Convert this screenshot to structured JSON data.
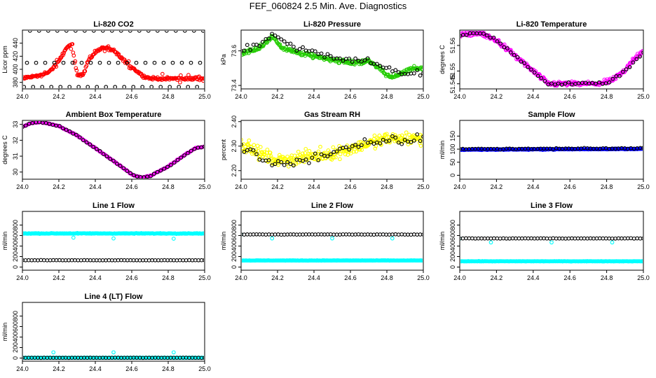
{
  "page": {
    "title": "FEF_060824  2.5 Min. Ave. Diagnostics"
  },
  "colors": {
    "co2": "#ff0000",
    "pressure": "#22cc00",
    "temperature": "#ff00ff",
    "box_temp": "#ff00ff",
    "rh": "#ffff00",
    "sample_flow": "#0000ff",
    "line_flow": "#00ffff",
    "reference": "#000000"
  },
  "chart_data": [
    {
      "id": "co2",
      "type": "scatter",
      "title": "Li-820 CO2",
      "ylabel": "Licor ppm",
      "xlim": [
        24.0,
        25.0
      ],
      "ylim": [
        370,
        460
      ],
      "xticks": [
        "24.0",
        "24.2",
        "24.4",
        "24.6",
        "24.8",
        "25.0"
      ],
      "yticks": [
        "380",
        "400",
        "420",
        "440"
      ],
      "series": [
        {
          "name": "co2",
          "color": "#ff0000",
          "kind": "keys",
          "keys": [
            [
              24.0,
              386
            ],
            [
              24.05,
              389
            ],
            [
              24.1,
              390
            ],
            [
              24.15,
              397
            ],
            [
              24.2,
              412
            ],
            [
              24.24,
              432
            ],
            [
              24.27,
              438
            ],
            [
              24.3,
              393
            ],
            [
              24.33,
              391
            ],
            [
              24.36,
              412
            ],
            [
              24.4,
              426
            ],
            [
              24.43,
              432
            ],
            [
              24.46,
              433
            ],
            [
              24.5,
              428
            ],
            [
              24.54,
              418
            ],
            [
              24.58,
              408
            ],
            [
              24.62,
              399
            ],
            [
              24.66,
              390
            ],
            [
              24.7,
              386
            ],
            [
              24.8,
              386
            ],
            [
              24.9,
              386
            ],
            [
              25.0,
              386
            ]
          ],
          "n": 260,
          "noise": 2,
          "extra_noise": 6
        },
        {
          "name": "reference",
          "color": "#000000",
          "kind": "levels",
          "levels": [
            373,
            410,
            459
          ],
          "n": 60
        }
      ]
    },
    {
      "id": "pressure",
      "type": "scatter",
      "title": "Li-820 Pressure",
      "ylabel": "kPa",
      "xlim": [
        24.0,
        25.0
      ],
      "ylim": [
        73.38,
        73.72
      ],
      "xticks": [
        "24.0",
        "24.2",
        "24.4",
        "24.6",
        "24.8",
        "25.0"
      ],
      "yticks": [
        "73.4",
        "73.6"
      ],
      "series": [
        {
          "name": "pressure",
          "color": "#22cc00",
          "kind": "keys",
          "keys": [
            [
              24.0,
              73.58
            ],
            [
              24.05,
              73.6
            ],
            [
              24.1,
              73.62
            ],
            [
              24.15,
              73.66
            ],
            [
              24.18,
              73.68
            ],
            [
              24.22,
              73.62
            ],
            [
              24.3,
              73.59
            ],
            [
              24.4,
              73.57
            ],
            [
              24.5,
              73.55
            ],
            [
              24.6,
              73.53
            ],
            [
              24.7,
              73.54
            ],
            [
              24.76,
              73.5
            ],
            [
              24.8,
              73.46
            ],
            [
              24.85,
              73.45
            ],
            [
              24.9,
              73.48
            ],
            [
              24.95,
              73.5
            ],
            [
              25.0,
              73.5
            ]
          ],
          "n": 240,
          "noise": 0.012
        },
        {
          "name": "reference",
          "color": "#000000",
          "kind": "keys",
          "keys": [
            [
              24.0,
              73.6
            ],
            [
              24.1,
              73.64
            ],
            [
              24.18,
              73.7
            ],
            [
              24.3,
              73.61
            ],
            [
              24.5,
              73.57
            ],
            [
              24.7,
              73.54
            ],
            [
              24.85,
              73.47
            ],
            [
              25.0,
              73.48
            ]
          ],
          "n": 60,
          "noise": 0.02
        }
      ]
    },
    {
      "id": "temperature",
      "type": "scatter",
      "title": "Li-820 Temperature",
      "ylabel": "degrees C",
      "xlim": [
        24.0,
        25.0
      ],
      "ylim": [
        51.543,
        51.566
      ],
      "xticks": [
        "24.0",
        "24.2",
        "24.4",
        "24.6",
        "24.8",
        "25.0"
      ],
      "yticks": [
        "51.545",
        "51.55",
        "51.56"
      ],
      "series": [
        {
          "name": "temperature",
          "color": "#ff00ff",
          "kind": "keys",
          "keys": [
            [
              24.0,
              51.564
            ],
            [
              24.1,
              51.565
            ],
            [
              24.2,
              51.562
            ],
            [
              24.3,
              51.556
            ],
            [
              24.4,
              51.55
            ],
            [
              24.48,
              51.545
            ],
            [
              24.6,
              51.545
            ],
            [
              24.75,
              51.545
            ],
            [
              24.82,
              51.546
            ],
            [
              24.9,
              51.55
            ],
            [
              24.95,
              51.555
            ],
            [
              25.0,
              51.558
            ]
          ],
          "n": 260,
          "noise": 0.0009
        },
        {
          "name": "reference",
          "color": "#000000",
          "kind": "keys",
          "keys": [
            [
              24.0,
              51.564
            ],
            [
              24.1,
              51.565
            ],
            [
              24.2,
              51.562
            ],
            [
              24.3,
              51.556
            ],
            [
              24.4,
              51.55
            ],
            [
              24.48,
              51.545
            ],
            [
              24.6,
              51.545
            ],
            [
              24.75,
              51.545
            ],
            [
              24.82,
              51.546
            ],
            [
              24.9,
              51.55
            ],
            [
              25.0,
              51.557
            ]
          ],
          "n": 55,
          "noise": 0.0006
        }
      ]
    },
    {
      "id": "box_temp",
      "type": "scatter",
      "title": "Ambient Box Temperature",
      "ylabel": "degrees C",
      "xlim": [
        24.0,
        25.0
      ],
      "ylim": [
        29.55,
        33.25
      ],
      "xticks": [
        "24.0",
        "24.2",
        "24.4",
        "24.6",
        "24.8",
        "25.0"
      ],
      "yticks": [
        "30",
        "31",
        "32",
        "33"
      ],
      "series": [
        {
          "name": "box_temp",
          "color": "#ff00ff",
          "kind": "keys",
          "keys": [
            [
              24.0,
              32.85
            ],
            [
              24.05,
              33.1
            ],
            [
              24.1,
              33.15
            ],
            [
              24.2,
              32.9
            ],
            [
              24.3,
              32.3
            ],
            [
              24.4,
              31.5
            ],
            [
              24.5,
              30.7
            ],
            [
              24.6,
              29.85
            ],
            [
              24.65,
              29.65
            ],
            [
              24.7,
              29.75
            ],
            [
              24.8,
              30.35
            ],
            [
              24.9,
              31.15
            ],
            [
              24.95,
              31.5
            ],
            [
              25.0,
              31.6
            ]
          ],
          "n": 220,
          "noise": 0.03
        },
        {
          "name": "reference",
          "color": "#000000",
          "kind": "keys",
          "keys": [
            [
              24.0,
              32.85
            ],
            [
              24.05,
              33.1
            ],
            [
              24.1,
              33.15
            ],
            [
              24.2,
              32.9
            ],
            [
              24.3,
              32.3
            ],
            [
              24.4,
              31.5
            ],
            [
              24.5,
              30.7
            ],
            [
              24.6,
              29.85
            ],
            [
              24.65,
              29.65
            ],
            [
              24.7,
              29.75
            ],
            [
              24.8,
              30.35
            ],
            [
              24.9,
              31.15
            ],
            [
              24.95,
              31.5
            ],
            [
              25.0,
              31.6
            ]
          ],
          "n": 55,
          "noise": 0.03
        }
      ]
    },
    {
      "id": "rh",
      "type": "scatter",
      "title": "Gas Stream RH",
      "ylabel": "percent",
      "xlim": [
        24.0,
        25.0
      ],
      "ylim": [
        2.165,
        2.405
      ],
      "xticks": [
        "24.0",
        "24.2",
        "24.4",
        "24.6",
        "24.8",
        "25.0"
      ],
      "yticks": [
        "2.20",
        "2.30",
        "2.40"
      ],
      "series": [
        {
          "name": "rh",
          "color": "#ffff00",
          "kind": "keys",
          "keys": [
            [
              24.0,
              2.31
            ],
            [
              24.1,
              2.27
            ],
            [
              24.2,
              2.24
            ],
            [
              24.3,
              2.25
            ],
            [
              24.4,
              2.26
            ],
            [
              24.5,
              2.27
            ],
            [
              24.6,
              2.29
            ],
            [
              24.7,
              2.31
            ],
            [
              24.8,
              2.33
            ],
            [
              24.9,
              2.33
            ],
            [
              25.0,
              2.33
            ]
          ],
          "n": 300,
          "noise": 0.025
        },
        {
          "name": "reference",
          "color": "#000000",
          "kind": "keys",
          "keys": [
            [
              24.0,
              2.3
            ],
            [
              24.1,
              2.25
            ],
            [
              24.2,
              2.23
            ],
            [
              24.3,
              2.24
            ],
            [
              24.4,
              2.25
            ],
            [
              24.5,
              2.27
            ],
            [
              24.6,
              2.29
            ],
            [
              24.7,
              2.31
            ],
            [
              24.8,
              2.32
            ],
            [
              25.0,
              2.33
            ]
          ],
          "n": 60,
          "noise": 0.02
        }
      ]
    },
    {
      "id": "sample_flow",
      "type": "scatter",
      "title": "Sample Flow",
      "ylabel": "ml/min",
      "xlim": [
        24.0,
        25.0
      ],
      "ylim": [
        -15,
        210
      ],
      "xticks": [
        "24.0",
        "24.2",
        "24.4",
        "24.6",
        "24.8",
        "25.0"
      ],
      "yticks": [
        "0",
        "50",
        "100",
        "150"
      ],
      "series": [
        {
          "name": "sample_flow",
          "color": "#0000ff",
          "kind": "keys",
          "keys": [
            [
              24.0,
              98
            ],
            [
              25.0,
              101
            ]
          ],
          "n": 260,
          "noise": 1.5
        },
        {
          "name": "reference",
          "color": "#000000",
          "kind": "keys",
          "keys": [
            [
              24.0,
              100
            ],
            [
              25.0,
              103
            ]
          ],
          "n": 60,
          "noise": 2
        }
      ]
    },
    {
      "id": "line1",
      "type": "scatter",
      "title": "Line 1 Flow",
      "ylabel": "ml/min",
      "xlim": [
        24.0,
        25.0
      ],
      "ylim": [
        -60,
        1060
      ],
      "xticks": [
        "24.0",
        "24.2",
        "24.4",
        "24.6",
        "24.8",
        "25.0"
      ],
      "yticks": [
        "0",
        "200",
        "400",
        "600",
        "800"
      ],
      "series": [
        {
          "name": "line1",
          "color": "#00ffff",
          "kind": "keys",
          "keys": [
            [
              24.0,
              640
            ],
            [
              25.0,
              640
            ]
          ],
          "n": 260,
          "noise": 6,
          "dips": [
            [
              24.28,
              560
            ],
            [
              24.5,
              545
            ],
            [
              24.83,
              540
            ]
          ]
        },
        {
          "name": "reference",
          "color": "#000000",
          "kind": "keys",
          "keys": [
            [
              24.0,
              130
            ],
            [
              25.0,
              130
            ]
          ],
          "n": 60,
          "noise": 2
        }
      ]
    },
    {
      "id": "line2",
      "type": "scatter",
      "title": "Line 2 Flow",
      "ylabel": "ml/min",
      "xlim": [
        24.0,
        25.0
      ],
      "ylim": [
        -60,
        1060
      ],
      "xticks": [
        "24.0",
        "24.2",
        "24.4",
        "24.6",
        "24.8",
        "25.0"
      ],
      "yticks": [
        "0",
        "200",
        "400",
        "600",
        "800"
      ],
      "series": [
        {
          "name": "line2",
          "color": "#00ffff",
          "kind": "keys",
          "keys": [
            [
              24.0,
              125
            ],
            [
              25.0,
              125
            ]
          ],
          "n": 260,
          "noise": 3,
          "dips": [
            [
              24.0,
              620
            ],
            [
              24.17,
              545
            ],
            [
              24.5,
              545
            ],
            [
              24.83,
              545
            ]
          ]
        },
        {
          "name": "reference",
          "color": "#000000",
          "kind": "keys",
          "keys": [
            [
              24.0,
              620
            ],
            [
              25.0,
              620
            ]
          ],
          "n": 60,
          "noise": 3
        }
      ]
    },
    {
      "id": "line3",
      "type": "scatter",
      "title": "Line 3 Flow",
      "ylabel": "ml/min",
      "xlim": [
        24.0,
        25.0
      ],
      "ylim": [
        -60,
        1060
      ],
      "xticks": [
        "24.0",
        "24.2",
        "24.4",
        "24.6",
        "24.8",
        "25.0"
      ],
      "yticks": [
        "0",
        "200",
        "400",
        "600",
        "800"
      ],
      "series": [
        {
          "name": "line3",
          "color": "#00ffff",
          "kind": "keys",
          "keys": [
            [
              24.0,
              110
            ],
            [
              25.0,
              110
            ]
          ],
          "n": 260,
          "noise": 3,
          "dips": [
            [
              24.0,
              540
            ],
            [
              24.17,
              470
            ],
            [
              24.5,
              470
            ],
            [
              24.83,
              470
            ]
          ]
        },
        {
          "name": "reference",
          "color": "#000000",
          "kind": "keys",
          "keys": [
            [
              24.03,
              545
            ],
            [
              25.0,
              545
            ]
          ],
          "n": 60,
          "noise": 3
        }
      ]
    },
    {
      "id": "line4",
      "type": "scatter",
      "title": "Line 4 (LT) Flow",
      "ylabel": "ml/min",
      "xlim": [
        24.0,
        25.0
      ],
      "ylim": [
        -60,
        1060
      ],
      "xticks": [
        "24.0",
        "24.2",
        "24.4",
        "24.6",
        "24.8",
        "25.0"
      ],
      "yticks": [
        "0",
        "200",
        "400",
        "600",
        "800"
      ],
      "series": [
        {
          "name": "line4",
          "color": "#00ffff",
          "kind": "keys",
          "keys": [
            [
              24.0,
              5
            ],
            [
              25.0,
              5
            ]
          ],
          "n": 260,
          "noise": 2,
          "dips": [
            [
              24.17,
              110
            ],
            [
              24.5,
              110
            ],
            [
              24.83,
              110
            ]
          ]
        },
        {
          "name": "reference",
          "color": "#000000",
          "kind": "keys",
          "keys": [
            [
              24.0,
              5
            ],
            [
              25.0,
              5
            ]
          ],
          "n": 60,
          "noise": 2
        }
      ]
    }
  ]
}
